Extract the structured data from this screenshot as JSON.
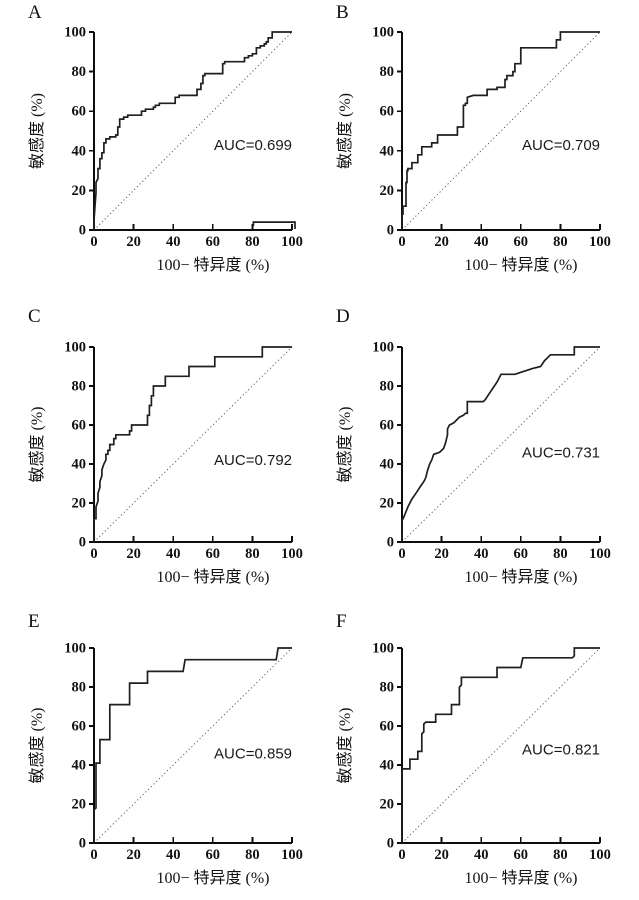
{
  "figure": {
    "panels": [
      "A",
      "B",
      "C",
      "D",
      "E",
      "F"
    ],
    "x_axis_label": "100− 特异度 (%)",
    "y_axis_label": "敏感度 (%)"
  },
  "colors": {
    "curve": "#1f1f1f",
    "axis": "#0d0d0d",
    "diagonal": "#4d4d4d",
    "label": "#111111",
    "auc_text": "#1a1a1a"
  },
  "chart_data": [
    {
      "type": "line",
      "panel": "A",
      "subtype": "roc-step-curve",
      "auc": 0.699,
      "auc_label": "AUC=0.699",
      "auc_label_pos": [
        100,
        43
      ],
      "xlabel": "100− 特异度 (%)",
      "ylabel": "敏感度 (%)",
      "xlim": [
        0,
        100
      ],
      "ylim": [
        0,
        100
      ],
      "xticks": [
        0,
        20,
        40,
        60,
        80,
        100
      ],
      "yticks": [
        0,
        20,
        40,
        60,
        80,
        100
      ],
      "reference_line": {
        "from": [
          0,
          0
        ],
        "to": [
          100,
          100
        ],
        "style": "dotted"
      },
      "roc_points": [
        [
          0,
          0
        ],
        [
          0,
          5
        ],
        [
          1,
          19
        ],
        [
          1,
          24
        ],
        [
          2,
          26
        ],
        [
          2,
          31
        ],
        [
          3,
          31
        ],
        [
          3,
          36
        ],
        [
          4,
          36
        ],
        [
          4,
          39
        ],
        [
          5,
          39
        ],
        [
          5,
          44
        ],
        [
          6,
          44
        ],
        [
          6,
          46
        ],
        [
          8,
          46
        ],
        [
          8,
          47
        ],
        [
          11,
          47
        ],
        [
          11,
          48
        ],
        [
          12,
          48
        ],
        [
          12,
          52
        ],
        [
          13,
          52
        ],
        [
          13,
          56
        ],
        [
          15,
          56
        ],
        [
          15,
          57
        ],
        [
          17,
          57
        ],
        [
          17,
          58
        ],
        [
          24,
          58
        ],
        [
          24,
          60
        ],
        [
          26,
          60
        ],
        [
          26,
          61
        ],
        [
          30,
          61
        ],
        [
          30,
          62
        ],
        [
          31,
          62
        ],
        [
          31,
          63
        ],
        [
          33,
          63
        ],
        [
          33,
          64
        ],
        [
          41,
          64
        ],
        [
          41,
          67
        ],
        [
          43,
          67
        ],
        [
          43,
          68
        ],
        [
          52,
          68
        ],
        [
          52,
          71
        ],
        [
          54,
          71
        ],
        [
          54,
          74
        ],
        [
          55,
          74
        ],
        [
          55,
          78
        ],
        [
          56,
          78
        ],
        [
          56,
          79
        ],
        [
          65,
          79
        ],
        [
          65,
          84
        ],
        [
          66,
          84
        ],
        [
          66,
          85
        ],
        [
          76,
          85
        ],
        [
          76,
          87
        ],
        [
          78,
          87
        ],
        [
          78,
          88
        ],
        [
          80,
          88
        ],
        [
          80,
          89
        ],
        [
          82,
          89
        ],
        [
          82,
          92
        ],
        [
          84,
          92
        ],
        [
          84,
          93
        ],
        [
          86,
          93
        ],
        [
          86,
          94
        ],
        [
          87,
          94
        ],
        [
          87,
          95
        ],
        [
          88,
          95
        ],
        [
          88,
          97
        ],
        [
          90,
          97
        ],
        [
          90,
          100
        ],
        [
          100,
          100
        ]
      ],
      "artifact_points": [
        [
          80.5,
          2
        ],
        [
          80.5,
          4
        ],
        [
          101.5,
          4
        ],
        [
          101.5,
          0.5
        ]
      ]
    },
    {
      "type": "line",
      "panel": "B",
      "subtype": "roc-step-curve",
      "auc": 0.709,
      "auc_label": "AUC=0.709",
      "auc_label_pos": [
        100,
        43
      ],
      "xlabel": "100− 特异度 (%)",
      "ylabel": "敏感度 (%)",
      "xlim": [
        0,
        100
      ],
      "ylim": [
        0,
        100
      ],
      "xticks": [
        0,
        20,
        40,
        60,
        80,
        100
      ],
      "yticks": [
        0,
        20,
        40,
        60,
        80,
        100
      ],
      "reference_line": {
        "from": [
          0,
          0
        ],
        "to": [
          100,
          100
        ],
        "style": "dotted"
      },
      "roc_points": [
        [
          0,
          0
        ],
        [
          0,
          8
        ],
        [
          0.5,
          8
        ],
        [
          0.5,
          12
        ],
        [
          2,
          12
        ],
        [
          2,
          24
        ],
        [
          2.5,
          24
        ],
        [
          2.5,
          30
        ],
        [
          3,
          30
        ],
        [
          3,
          31
        ],
        [
          5,
          31
        ],
        [
          5,
          34
        ],
        [
          8,
          34
        ],
        [
          8,
          38
        ],
        [
          10,
          38
        ],
        [
          10,
          42
        ],
        [
          15,
          42
        ],
        [
          15,
          44
        ],
        [
          18,
          44
        ],
        [
          18,
          48
        ],
        [
          28,
          48
        ],
        [
          28,
          52
        ],
        [
          31,
          52
        ],
        [
          31,
          63
        ],
        [
          32,
          63
        ],
        [
          32,
          64
        ],
        [
          33,
          64
        ],
        [
          33,
          67
        ],
        [
          36,
          68
        ],
        [
          43,
          68
        ],
        [
          43,
          71
        ],
        [
          48,
          71
        ],
        [
          48,
          72
        ],
        [
          52,
          72
        ],
        [
          52,
          76
        ],
        [
          53,
          76
        ],
        [
          53,
          78
        ],
        [
          56,
          78
        ],
        [
          56,
          80
        ],
        [
          57,
          80
        ],
        [
          57,
          84
        ],
        [
          60,
          84
        ],
        [
          60,
          92
        ],
        [
          78,
          92
        ],
        [
          78,
          96
        ],
        [
          80,
          96
        ],
        [
          80,
          100
        ],
        [
          100,
          100
        ]
      ]
    },
    {
      "type": "line",
      "panel": "C",
      "subtype": "roc-step-curve",
      "auc": 0.792,
      "auc_label": "AUC=0.792",
      "auc_label_pos": [
        100,
        42
      ],
      "xlabel": "100− 特异度 (%)",
      "ylabel": "敏感度 (%)",
      "xlim": [
        0,
        100
      ],
      "ylim": [
        0,
        100
      ],
      "xticks": [
        0,
        20,
        40,
        60,
        80,
        100
      ],
      "yticks": [
        0,
        20,
        40,
        60,
        80,
        100
      ],
      "reference_line": {
        "from": [
          0,
          0
        ],
        "to": [
          100,
          100
        ],
        "style": "dotted"
      },
      "roc_points": [
        [
          0,
          0
        ],
        [
          0,
          12
        ],
        [
          1,
          12
        ],
        [
          1,
          15
        ],
        [
          1,
          18
        ],
        [
          2,
          21
        ],
        [
          2,
          25
        ],
        [
          3,
          28
        ],
        [
          3,
          31
        ],
        [
          4,
          34
        ],
        [
          4,
          37
        ],
        [
          5,
          40
        ],
        [
          6,
          42
        ],
        [
          6,
          45
        ],
        [
          7,
          45
        ],
        [
          7,
          47
        ],
        [
          8,
          47
        ],
        [
          8,
          50
        ],
        [
          10,
          50
        ],
        [
          10,
          53
        ],
        [
          11,
          53
        ],
        [
          11,
          55
        ],
        [
          18,
          55
        ],
        [
          18,
          57
        ],
        [
          19,
          57
        ],
        [
          19,
          60
        ],
        [
          27,
          60
        ],
        [
          27,
          65
        ],
        [
          28,
          65
        ],
        [
          28,
          70
        ],
        [
          29,
          70
        ],
        [
          29,
          75
        ],
        [
          30,
          75
        ],
        [
          30,
          80
        ],
        [
          36,
          80
        ],
        [
          36,
          85
        ],
        [
          48,
          85
        ],
        [
          48,
          90
        ],
        [
          61,
          90
        ],
        [
          61,
          95
        ],
        [
          85,
          95
        ],
        [
          85,
          100
        ],
        [
          100,
          100
        ]
      ]
    },
    {
      "type": "line",
      "panel": "D",
      "subtype": "roc-step-curve",
      "auc": 0.731,
      "auc_label": "AUC=0.731",
      "auc_label_pos": [
        100,
        46
      ],
      "xlabel": "100− 特异度 (%)",
      "ylabel": "敏感度 (%)",
      "xlim": [
        0,
        100
      ],
      "ylim": [
        0,
        100
      ],
      "xticks": [
        0,
        20,
        40,
        60,
        80,
        100
      ],
      "yticks": [
        0,
        20,
        40,
        60,
        80,
        100
      ],
      "reference_line": {
        "from": [
          0,
          0
        ],
        "to": [
          100,
          100
        ],
        "style": "dotted"
      },
      "roc_points": [
        [
          0,
          0
        ],
        [
          0,
          11
        ],
        [
          1,
          13
        ],
        [
          3,
          18
        ],
        [
          5,
          22
        ],
        [
          7,
          25
        ],
        [
          9,
          28
        ],
        [
          11,
          31
        ],
        [
          12,
          33
        ],
        [
          13,
          37
        ],
        [
          14,
          40
        ],
        [
          15,
          42
        ],
        [
          16,
          45
        ],
        [
          19,
          46
        ],
        [
          20,
          47
        ],
        [
          21,
          48
        ],
        [
          22,
          51
        ],
        [
          23,
          55
        ],
        [
          23,
          58
        ],
        [
          24,
          60
        ],
        [
          26,
          61
        ],
        [
          27,
          62
        ],
        [
          29,
          64
        ],
        [
          31,
          65
        ],
        [
          32,
          66
        ],
        [
          33,
          66
        ],
        [
          33,
          72
        ],
        [
          41,
          72
        ],
        [
          42,
          73
        ],
        [
          44,
          76
        ],
        [
          46,
          79
        ],
        [
          48,
          82
        ],
        [
          50,
          86
        ],
        [
          57,
          86
        ],
        [
          60,
          87
        ],
        [
          63,
          88
        ],
        [
          66,
          89
        ],
        [
          70,
          90
        ],
        [
          72,
          93
        ],
        [
          75,
          96
        ],
        [
          87,
          96
        ],
        [
          87,
          100
        ],
        [
          100,
          100
        ]
      ]
    },
    {
      "type": "line",
      "panel": "E",
      "subtype": "roc-step-curve",
      "auc": 0.859,
      "auc_label": "AUC=0.859",
      "auc_label_pos": [
        100,
        46
      ],
      "xlabel": "100− 特异度 (%)",
      "ylabel": "敏感度 (%)",
      "xlim": [
        0,
        100
      ],
      "ylim": [
        0,
        100
      ],
      "xticks": [
        0,
        20,
        40,
        60,
        80,
        100
      ],
      "yticks": [
        0,
        20,
        40,
        60,
        80,
        100
      ],
      "reference_line": {
        "from": [
          0,
          0
        ],
        "to": [
          100,
          100
        ],
        "style": "dotted"
      },
      "roc_points": [
        [
          0,
          0
        ],
        [
          0,
          17
        ],
        [
          1,
          18
        ],
        [
          1,
          35
        ],
        [
          1,
          41
        ],
        [
          2,
          41
        ],
        [
          3,
          41
        ],
        [
          3,
          53
        ],
        [
          8,
          53
        ],
        [
          8,
          71
        ],
        [
          18,
          71
        ],
        [
          18,
          82
        ],
        [
          27,
          82
        ],
        [
          27,
          88
        ],
        [
          45,
          88
        ],
        [
          46,
          94
        ],
        [
          92,
          94
        ],
        [
          93,
          100
        ],
        [
          100,
          100
        ]
      ]
    },
    {
      "type": "line",
      "panel": "F",
      "subtype": "roc-step-curve",
      "auc": 0.821,
      "auc_label": "AUC=0.821",
      "auc_label_pos": [
        100,
        48
      ],
      "xlabel": "100− 特异度 (%)",
      "ylabel": "敏感度 (%)",
      "xlim": [
        0,
        100
      ],
      "ylim": [
        0,
        100
      ],
      "xticks": [
        0,
        20,
        40,
        60,
        80,
        100
      ],
      "yticks": [
        0,
        20,
        40,
        60,
        80,
        100
      ],
      "reference_line": {
        "from": [
          0,
          0
        ],
        "to": [
          100,
          100
        ],
        "style": "dotted"
      },
      "roc_points": [
        [
          0,
          0
        ],
        [
          0,
          14
        ],
        [
          0,
          38
        ],
        [
          4,
          38
        ],
        [
          4,
          43
        ],
        [
          8,
          43
        ],
        [
          8,
          47
        ],
        [
          10,
          47
        ],
        [
          10,
          56
        ],
        [
          11,
          57
        ],
        [
          11,
          61
        ],
        [
          12,
          62
        ],
        [
          17,
          62
        ],
        [
          17,
          66
        ],
        [
          25,
          66
        ],
        [
          25,
          71
        ],
        [
          29,
          71
        ],
        [
          29,
          80
        ],
        [
          30,
          81
        ],
        [
          30,
          85
        ],
        [
          48,
          85
        ],
        [
          48,
          90
        ],
        [
          60,
          90
        ],
        [
          61,
          95
        ],
        [
          86,
          95
        ],
        [
          87,
          96
        ],
        [
          87,
          100
        ],
        [
          100,
          100
        ]
      ]
    }
  ]
}
